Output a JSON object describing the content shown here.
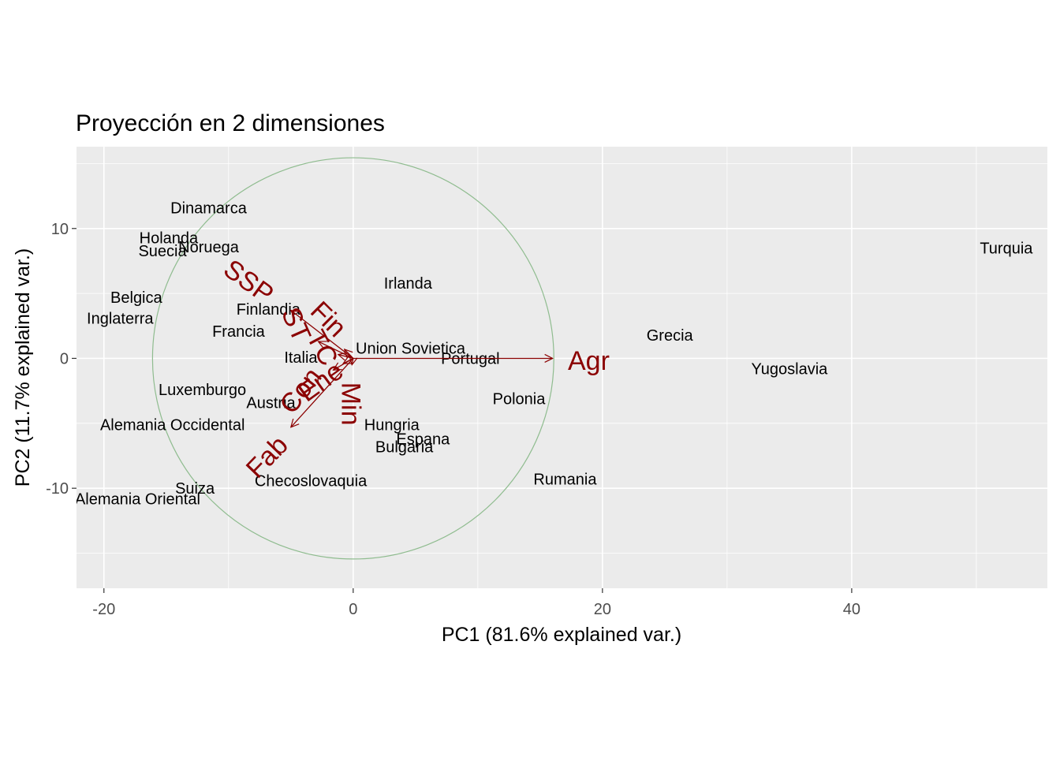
{
  "chart_data": {
    "type": "scatter",
    "subtype": "pca-biplot",
    "title": "Proyección en 2 dimensiones",
    "xlabel": "PC1 (81.6% explained var.)",
    "ylabel": "PC2 (11.7% explained var.)",
    "xlim": [
      -22.2,
      55.7
    ],
    "ylim": [
      -17.7,
      16.3
    ],
    "x_ticks": [
      -20,
      0,
      20,
      40
    ],
    "y_ticks": [
      -10,
      0,
      10
    ],
    "grid": true,
    "circle": {
      "center": [
        0,
        0
      ],
      "radius": 16.1,
      "color": "#8fbc8f"
    },
    "observations": [
      {
        "label": "Dinamarca",
        "x": -11.6,
        "y": 11.6
      },
      {
        "label": "Holanda",
        "x": -14.8,
        "y": 9.3
      },
      {
        "label": "Noruega",
        "x": -11.6,
        "y": 8.6
      },
      {
        "label": "Suecia",
        "x": -15.3,
        "y": 8.3
      },
      {
        "label": "Belgica",
        "x": -17.4,
        "y": 4.7
      },
      {
        "label": "Inglaterra",
        "x": -18.7,
        "y": 3.1
      },
      {
        "label": "Irlanda",
        "x": 4.4,
        "y": 5.8
      },
      {
        "label": "Finlandia",
        "x": -6.8,
        "y": 3.8
      },
      {
        "label": "Francia",
        "x": -9.2,
        "y": 2.1
      },
      {
        "label": "Italia",
        "x": -4.2,
        "y": 0.1
      },
      {
        "label": "Union Sovietica",
        "x": 4.6,
        "y": 0.8
      },
      {
        "label": "Portugal",
        "x": 9.4,
        "y": 0.0
      },
      {
        "label": "Grecia",
        "x": 25.4,
        "y": 1.8
      },
      {
        "label": "Yugoslavia",
        "x": 35.0,
        "y": -0.8
      },
      {
        "label": "Turquia",
        "x": 52.4,
        "y": 8.5
      },
      {
        "label": "Luxemburgo",
        "x": -12.1,
        "y": -2.4
      },
      {
        "label": "Austria",
        "x": -6.6,
        "y": -3.4
      },
      {
        "label": "Polonia",
        "x": 13.3,
        "y": -3.1
      },
      {
        "label": "Alemania Occidental",
        "x": -14.5,
        "y": -5.1
      },
      {
        "label": "Hungria",
        "x": 3.1,
        "y": -5.1
      },
      {
        "label": "Espana",
        "x": 5.6,
        "y": -6.2
      },
      {
        "label": "Bulgaria",
        "x": 4.1,
        "y": -6.8
      },
      {
        "label": "Rumania",
        "x": 17.0,
        "y": -9.3
      },
      {
        "label": "Checoslovaquia",
        "x": -3.4,
        "y": -9.4
      },
      {
        "label": "Suiza",
        "x": -12.7,
        "y": -10.0
      },
      {
        "label": "Alemania Oriental",
        "x": -17.3,
        "y": -10.8
      }
    ],
    "loadings": [
      {
        "label": "Agr",
        "x": 16.0,
        "y": 0.0,
        "lx": 18.9,
        "ly": -0.2,
        "angle": 0
      },
      {
        "label": "Min",
        "x": -0.1,
        "y": -0.5,
        "lx": -0.2,
        "ly": -3.5,
        "angle": 90
      },
      {
        "label": "Fab",
        "x": -5.0,
        "y": -5.3,
        "lx": -6.9,
        "ly": -7.6,
        "angle": -46
      },
      {
        "label": "SSP",
        "x": -5.0,
        "y": 3.7,
        "lx": -8.4,
        "ly": 5.9,
        "angle": 36
      },
      {
        "label": "Fin",
        "x": -0.7,
        "y": 0.7,
        "lx": -2.0,
        "ly": 3.0,
        "angle": 45
      },
      {
        "label": "ST",
        "x": -2.8,
        "y": 1.3,
        "lx": -4.6,
        "ly": 2.6,
        "angle": 66
      },
      {
        "label": "TC",
        "x": -1.2,
        "y": 0.3,
        "lx": -2.5,
        "ly": 0.8,
        "angle": 62
      },
      {
        "label": "Ene",
        "x": -0.8,
        "y": -0.4,
        "lx": -2.6,
        "ly": -1.8,
        "angle": -36
      },
      {
        "label": "Con",
        "x": -1.6,
        "y": -0.9,
        "lx": -4.2,
        "ly": -2.5,
        "angle": -52
      }
    ]
  }
}
